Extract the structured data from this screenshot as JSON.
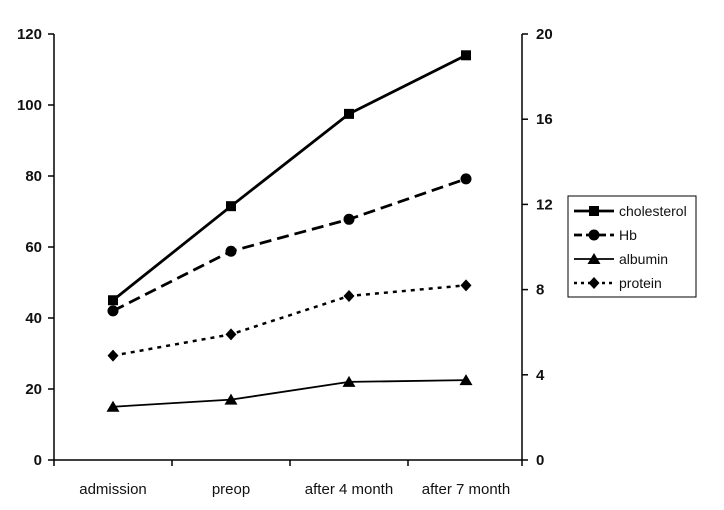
{
  "chart_data": {
    "type": "line",
    "categories": [
      "admission",
      "preop",
      "after 4  month",
      "after 7  month"
    ],
    "left_axis": {
      "ylim": [
        0,
        120
      ],
      "ticks": [
        "0",
        "20",
        "40",
        "60",
        "80",
        "100",
        "120"
      ]
    },
    "right_axis": {
      "ylim": [
        0,
        20
      ],
      "ticks": [
        "0",
        "4",
        "8",
        "12",
        "16",
        "20"
      ]
    },
    "grid": false,
    "legend_position": "right",
    "series": [
      {
        "name": "cholesterol",
        "axis": "left",
        "marker": "square",
        "line": "solid",
        "values": [
          45,
          71.5,
          97.5,
          114
        ]
      },
      {
        "name": "Hb",
        "axis": "right",
        "marker": "circle",
        "line": "dashed",
        "values": [
          7,
          9.8,
          11.3,
          13.2
        ]
      },
      {
        "name": "albumin",
        "axis": "left",
        "marker": "triangle",
        "line": "solid-thin",
        "values": [
          15,
          17,
          22,
          22.5
        ]
      },
      {
        "name": "protein",
        "axis": "right",
        "marker": "diamond",
        "line": "dotted",
        "values": [
          4.9,
          5.9,
          7.7,
          8.2
        ]
      }
    ],
    "colors": {
      "line": "#000000",
      "background": "#ffffff"
    }
  }
}
